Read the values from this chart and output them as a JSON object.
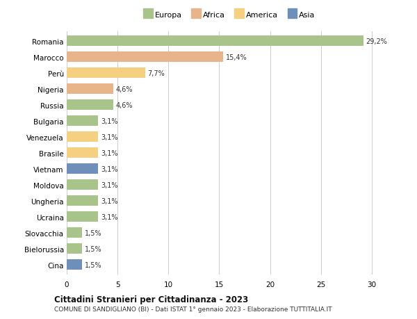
{
  "countries": [
    "Romania",
    "Marocco",
    "Perù",
    "Nigeria",
    "Russia",
    "Bulgaria",
    "Venezuela",
    "Brasile",
    "Vietnam",
    "Moldova",
    "Ungheria",
    "Ucraina",
    "Slovacchia",
    "Bielorussia",
    "Cina"
  ],
  "values": [
    29.2,
    15.4,
    7.7,
    4.6,
    4.6,
    3.1,
    3.1,
    3.1,
    3.1,
    3.1,
    3.1,
    3.1,
    1.5,
    1.5,
    1.5
  ],
  "labels": [
    "29,2%",
    "15,4%",
    "7,7%",
    "4,6%",
    "4,6%",
    "3,1%",
    "3,1%",
    "3,1%",
    "3,1%",
    "3,1%",
    "3,1%",
    "3,1%",
    "1,5%",
    "1,5%",
    "1,5%"
  ],
  "colors": [
    "#a8c48a",
    "#e8b48a",
    "#f5d080",
    "#e8b48a",
    "#a8c48a",
    "#a8c48a",
    "#f5d080",
    "#f5d080",
    "#6f8fbb",
    "#a8c48a",
    "#a8c48a",
    "#a8c48a",
    "#a8c48a",
    "#a8c48a",
    "#6f8fbb"
  ],
  "legend_labels": [
    "Europa",
    "Africa",
    "America",
    "Asia"
  ],
  "legend_colors": [
    "#a8c48a",
    "#e8b48a",
    "#f5d080",
    "#6f8fbb"
  ],
  "title": "Cittadini Stranieri per Cittadinanza - 2023",
  "subtitle": "COMUNE DI SANDIGLIANO (BI) - Dati ISTAT 1° gennaio 2023 - Elaborazione TUTTITALIA.IT",
  "xlim": [
    0,
    32
  ],
  "xticks": [
    0,
    5,
    10,
    15,
    20,
    25,
    30
  ],
  "bg_color": "#ffffff",
  "grid_color": "#cccccc",
  "bar_height": 0.65
}
